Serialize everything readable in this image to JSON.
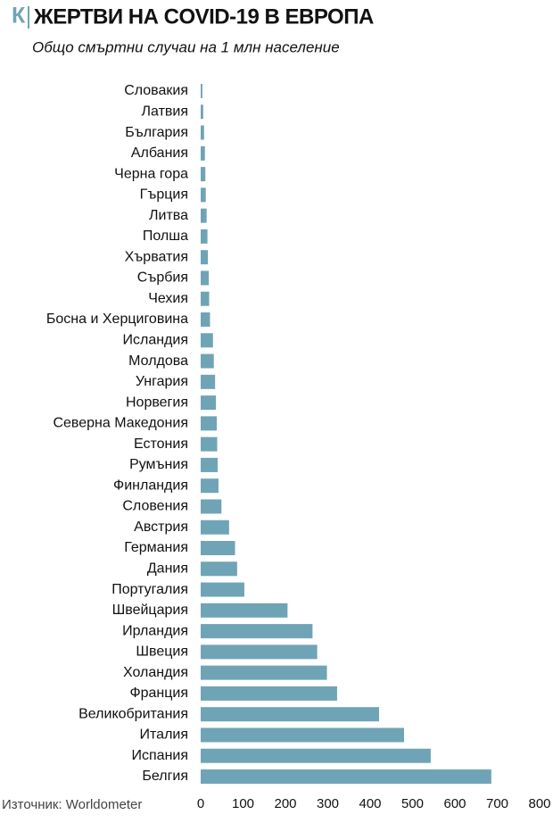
{
  "chart_data": {
    "type": "barh",
    "logo": "К",
    "title": "ЖЕРТВИ НА COVID-19 В ЕВРОПА",
    "subtitle": "Общо смъртни случаи на 1 млн население",
    "source": "Източник: Worldometer",
    "color": "#6fa4b6",
    "categories": [
      "Словакия",
      "Латвия",
      "България",
      "Албания",
      "Черна гора",
      "Гърция",
      "Литва",
      "Полша",
      "Хърватия",
      "Сърбия",
      "Чехия",
      "Босна и Херциговина",
      "Исландия",
      "Молдова",
      "Унгария",
      "Норвегия",
      "Северна Македония",
      "Естония",
      "Румъния",
      "Финландия",
      "Словения",
      "Австрия",
      "Германия",
      "Дания",
      "Португалия",
      "Швейцария",
      "Ирландия",
      "Швеция",
      "Холандия",
      "Франция",
      "Великобритания",
      "Италия",
      "Испания",
      "Белгия"
    ],
    "values": [
      4,
      6,
      8,
      10,
      11,
      12,
      14,
      16,
      17,
      19,
      20,
      22,
      29,
      31,
      34,
      36,
      38,
      39,
      40,
      42,
      49,
      67,
      81,
      86,
      103,
      205,
      264,
      275,
      298,
      322,
      421,
      480,
      543,
      686
    ],
    "xlim": [
      0,
      800
    ],
    "xticks": [
      0,
      100,
      200,
      300,
      400,
      500,
      600,
      700,
      800
    ]
  }
}
